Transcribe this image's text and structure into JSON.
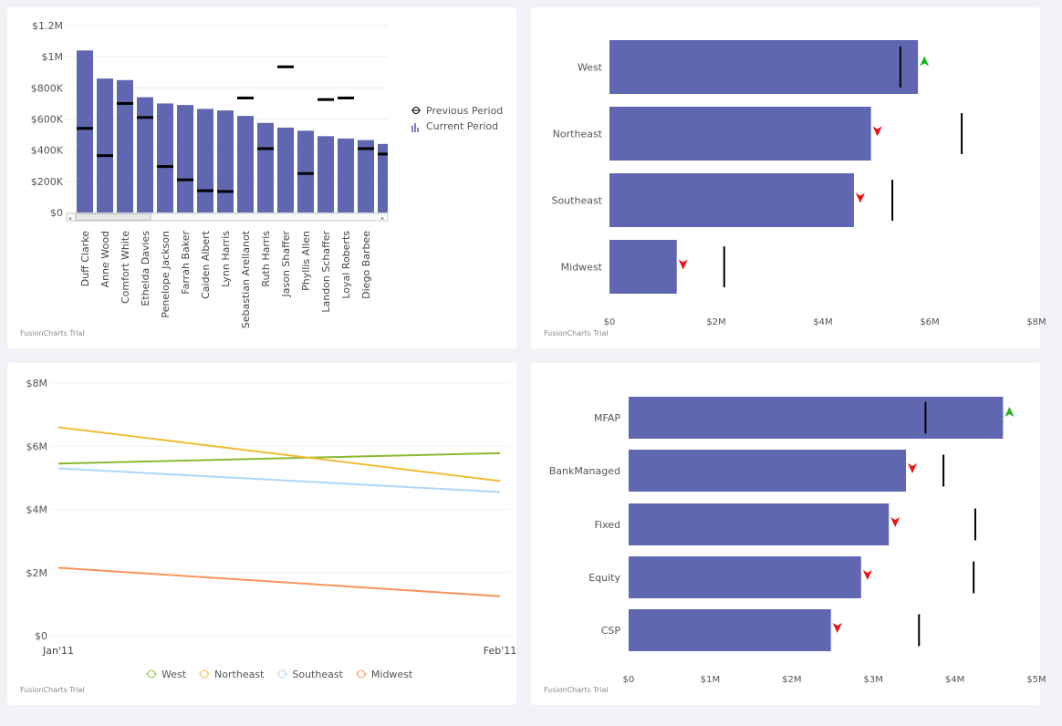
{
  "watermark": "FusionCharts Trial",
  "chart_data": [
    {
      "type": "bar",
      "subtype": "column with previous-period markers",
      "title": "",
      "yticks": [
        "$0",
        "$200K",
        "$400K",
        "$600K",
        "$800K",
        "$1M",
        "$1.2M"
      ],
      "ylim": [
        0,
        1200000
      ],
      "categories": [
        "Duff Clarke",
        "Anne Wood",
        "Comfort White",
        "Ethelda Davies",
        "Penelope Jackson",
        "Farrah Baker",
        "Caiden Albert",
        "Lynn Harris",
        "Sebastian Arellanot",
        "Ruth Harris",
        "Jason Shaffer",
        "Phyllis Allen",
        "Landon Schaffer",
        "Loyal Roberts",
        "Diego Barbee",
        ""
      ],
      "series": [
        {
          "name": "Current Period",
          "values": [
            1040000,
            860000,
            850000,
            740000,
            700000,
            690000,
            665000,
            655000,
            620000,
            575000,
            545000,
            525000,
            490000,
            475000,
            465000,
            440000
          ],
          "color": "#5f67b0"
        },
        {
          "name": "Previous Period",
          "values": [
            540000,
            365000,
            700000,
            610000,
            295000,
            210000,
            140000,
            135000,
            735000,
            410000,
            935000,
            250000,
            725000,
            735000,
            410000,
            375000
          ],
          "color": "#000000"
        }
      ],
      "legend": "right",
      "scrollbar": true
    },
    {
      "type": "bar",
      "subtype": "horizontal bullet",
      "categories": [
        "West",
        "Northeast",
        "Southeast",
        "Midwest"
      ],
      "values": [
        5780000,
        4900000,
        4580000,
        1260000
      ],
      "targets": [
        5450000,
        6600000,
        5300000,
        2150000
      ],
      "trend": [
        "up",
        "down",
        "down",
        "down"
      ],
      "xticks": [
        "$0",
        "$2M",
        "$4M",
        "$6M",
        "$8M"
      ],
      "xlim": [
        0,
        8000000
      ]
    },
    {
      "type": "line",
      "x": [
        "Jan'11",
        "Feb'11"
      ],
      "yticks": [
        "$0",
        "$2M",
        "$4M",
        "$6M",
        "$8M"
      ],
      "ylim": [
        0,
        8000000
      ],
      "series": [
        {
          "name": "West",
          "values": [
            5450000,
            5780000
          ],
          "color": "#8bba30"
        },
        {
          "name": "Northeast",
          "values": [
            6600000,
            4900000
          ],
          "color": "#f2bb33"
        },
        {
          "name": "Southeast",
          "values": [
            5300000,
            4550000
          ],
          "color": "#afd7f7"
        },
        {
          "name": "Midwest",
          "values": [
            2150000,
            1250000
          ],
          "color": "#f6955c"
        }
      ],
      "legend": "bottom"
    },
    {
      "type": "bar",
      "subtype": "horizontal bullet",
      "categories": [
        "MFAP",
        "BankManaged",
        "Fixed",
        "Equity",
        "CSP"
      ],
      "values": [
        4590000,
        3400000,
        3190000,
        2850000,
        2480000
      ],
      "targets": [
        3640000,
        3860000,
        4250000,
        4230000,
        3560000
      ],
      "trend": [
        "up",
        "down",
        "down",
        "down",
        "down"
      ],
      "xticks": [
        "$0",
        "$1M",
        "$2M",
        "$3M",
        "$4M",
        "$5M"
      ],
      "xlim": [
        0,
        5000000
      ]
    }
  ],
  "colors": {
    "bar": "#5f67b0",
    "up": "#1db11d",
    "down": "#ee1111"
  }
}
